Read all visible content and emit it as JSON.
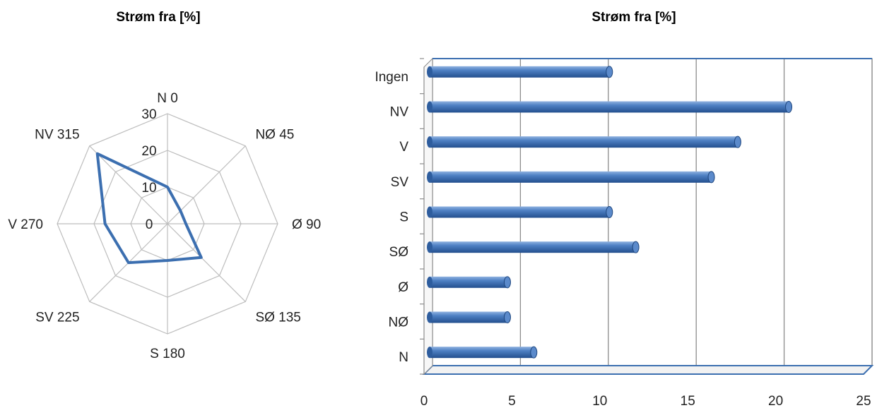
{
  "chart_data": [
    {
      "type": "radar",
      "title": "Strøm fra [%]",
      "categories": [
        "N 0",
        "NØ 45",
        "Ø 90",
        "SØ 135",
        "S 180",
        "SV 225",
        "V 270",
        "NV 315"
      ],
      "values": [
        10,
        5,
        5,
        13,
        10,
        15,
        17,
        27
      ],
      "radial_ticks": [
        "0",
        "10",
        "20",
        "30"
      ],
      "rlim": [
        0,
        30
      ],
      "series_color": "#3C6FB0",
      "grid": true
    },
    {
      "type": "bar",
      "orientation": "horizontal",
      "title": "Strøm fra [%]",
      "categories": [
        "N",
        "NØ",
        "Ø",
        "SØ",
        "S",
        "SV",
        "V",
        "NV",
        "Ingen"
      ],
      "values": [
        6,
        4.5,
        4.5,
        11.8,
        10.3,
        16.1,
        17.6,
        20.5,
        10.3
      ],
      "xticks": [
        "0",
        "5",
        "10",
        "15",
        "20",
        "25"
      ],
      "xlim": [
        0,
        25
      ],
      "bar_color": "#3C6FB0",
      "grid": true
    }
  ]
}
